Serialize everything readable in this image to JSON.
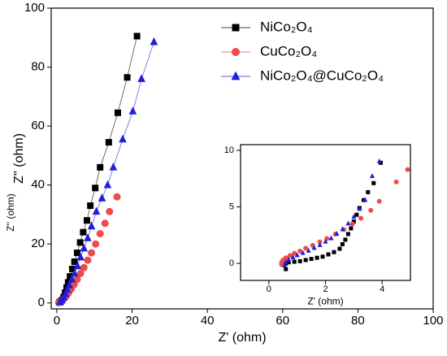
{
  "chart_data": [
    {
      "type": "scatter",
      "xlabel": "Z' (ohm)",
      "ylabel": "Z'' (ohm)",
      "xlim": [
        -1.5,
        100
      ],
      "ylim": [
        -2,
        100
      ],
      "xticks": [
        0,
        20,
        40,
        60,
        80,
        100
      ],
      "yticks": [
        0,
        20,
        40,
        60,
        80,
        100
      ],
      "legend": "upper right",
      "series": [
        {
          "name": "NiCo₂O₄",
          "color": "#000000",
          "marker": "square",
          "line": true,
          "x": [
            21.3,
            18.7,
            16.2,
            13.8,
            11.5,
            10.2,
            8.9,
            8,
            7,
            6.2,
            5.4,
            4.7,
            4.1,
            3.5,
            3,
            2.6,
            2.2,
            1.8,
            1.4,
            1,
            0.7
          ],
          "values": [
            90.5,
            76.5,
            64.5,
            54.5,
            46,
            39,
            33,
            28,
            24,
            20.5,
            17,
            14,
            11.5,
            9,
            7,
            5.2,
            3.5,
            2,
            1,
            0.5,
            0.2
          ]
        },
        {
          "name": "CuCo₂O₄",
          "color": "#ef4b4b",
          "marker": "circle",
          "line": false,
          "x": [
            16,
            14,
            12.8,
            11.5,
            10.3,
            9.2,
            8.2,
            7.2,
            6.3,
            5.4,
            4.6,
            3.8,
            3.1,
            2.5,
            1.9,
            1.4,
            0.9,
            0.5
          ],
          "values": [
            36,
            31,
            27,
            23.5,
            20,
            17,
            14.5,
            12,
            10,
            8,
            6.2,
            4.7,
            3.4,
            2.3,
            1.4,
            0.8,
            0.3,
            0.1
          ]
        },
        {
          "name": "NiCo₂O₄@CuCo₂O₄",
          "color": "#1f1fd6",
          "marker": "triangle",
          "line": true,
          "x": [
            25.8,
            22.5,
            20.2,
            17.5,
            15,
            13.5,
            12,
            10.5,
            9.2,
            8.2,
            7.2,
            6.3,
            5.5,
            4.7,
            4,
            3.3,
            2.8,
            2.3,
            1.8,
            1.3,
            0.8
          ],
          "values": [
            88.5,
            76,
            65,
            55.5,
            46,
            40,
            35.5,
            31,
            26,
            22,
            18.5,
            15.5,
            12.5,
            10,
            8,
            6,
            4.5,
            3,
            1.8,
            0.9,
            0.3
          ]
        }
      ]
    },
    {
      "type": "scatter",
      "xlabel": "Z' (ohm)",
      "ylabel": "Z'' (ohm)",
      "xlim": [
        -1,
        5
      ],
      "ylim": [
        -1.5,
        10.5
      ],
      "xticks": [
        0,
        2,
        4
      ],
      "yticks": [
        0,
        5,
        10
      ],
      "series": [
        {
          "color": "#000000",
          "marker": "square",
          "x": [
            0.6,
            0.6,
            0.7,
            0.9,
            1.1,
            1.3,
            1.5,
            1.7,
            1.9,
            2.1,
            2.3,
            2.5,
            2.6,
            2.7,
            2.8,
            2.9,
            3,
            3.1,
            3.2,
            3.35,
            3.5,
            3.7,
            3.95
          ],
          "values": [
            -0.5,
            0,
            0.1,
            0.15,
            0.2,
            0.3,
            0.4,
            0.5,
            0.6,
            0.8,
            1,
            1.3,
            1.7,
            2.1,
            2.6,
            3.1,
            3.7,
            4.3,
            4.9,
            5.6,
            6.3,
            7.1,
            8.9
          ]
        },
        {
          "color": "#ef4b4b",
          "marker": "circle",
          "x": [
            0.45,
            0.45,
            0.5,
            0.6,
            0.75,
            0.9,
            1.1,
            1.3,
            1.55,
            1.8,
            2.05,
            2.35,
            2.65,
            2.95,
            3.25,
            3.6,
            3.9,
            4.5,
            4.9
          ],
          "values": [
            -0.1,
            0.1,
            0.3,
            0.5,
            0.7,
            0.9,
            1.1,
            1.35,
            1.6,
            1.9,
            2.2,
            2.6,
            3,
            3.5,
            4,
            4.7,
            5.5,
            7.2,
            8.3
          ]
        },
        {
          "color": "#1f1fd6",
          "marker": "triangle",
          "x": [
            0.55,
            0.6,
            0.7,
            0.85,
            1,
            1.2,
            1.4,
            1.6,
            1.8,
            2,
            2.2,
            2.4,
            2.6,
            2.8,
            3,
            3.2,
            3.4,
            3.65,
            3.9
          ],
          "values": [
            -0.2,
            0.1,
            0.3,
            0.5,
            0.7,
            0.9,
            1.1,
            1.35,
            1.6,
            1.9,
            2.2,
            2.6,
            3,
            3.5,
            4.1,
            4.8,
            5.6,
            7.7,
            9
          ]
        }
      ]
    }
  ]
}
